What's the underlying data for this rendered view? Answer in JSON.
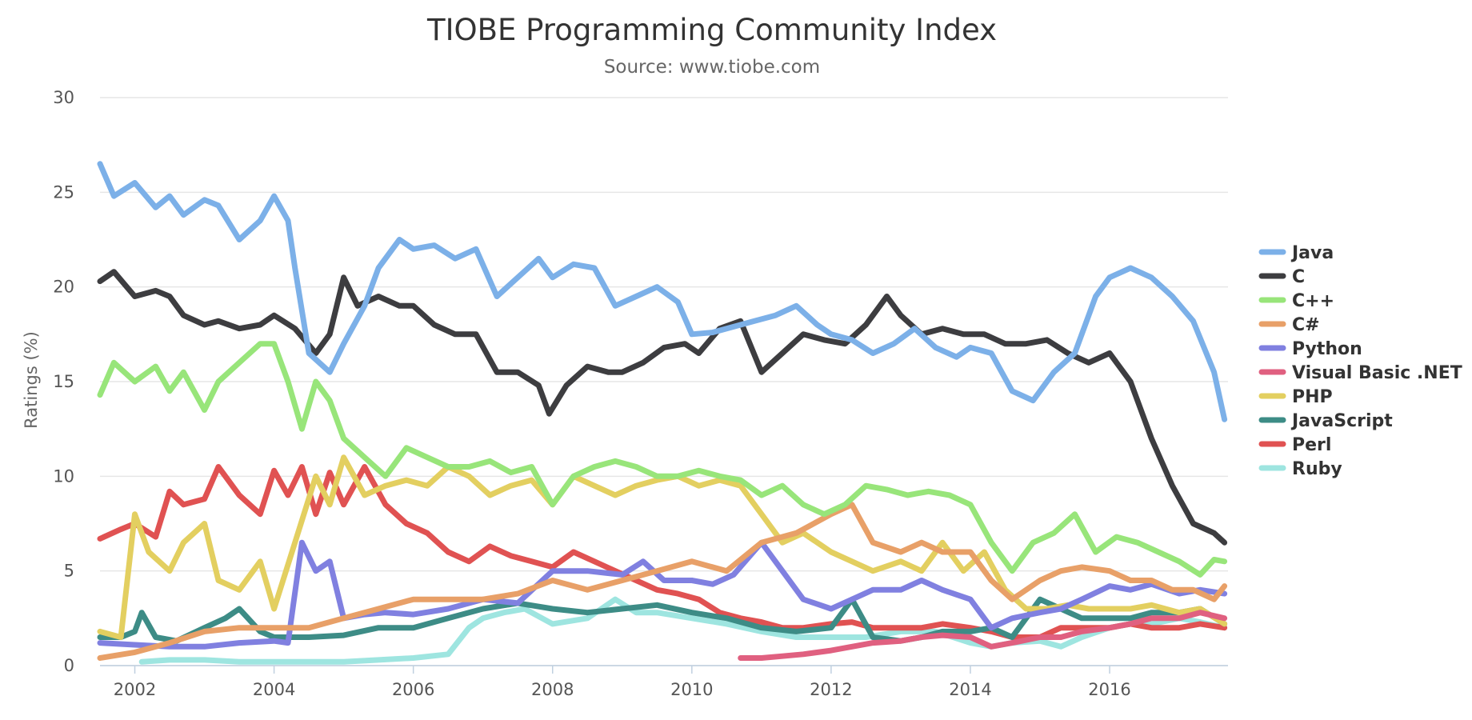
{
  "chart_data": {
    "type": "line",
    "title": "TIOBE Programming Community Index",
    "subtitle": "Source: www.tiobe.com",
    "xlabel": "",
    "ylabel": "Ratings (%)",
    "xlim": [
      2001.5,
      2017.7
    ],
    "ylim": [
      0,
      30
    ],
    "grid": true,
    "legend_position": "right",
    "x_ticks": [
      "2002",
      "2004",
      "2006",
      "2008",
      "2010",
      "2012",
      "2014",
      "2016"
    ],
    "y_ticks": [
      "0",
      "5",
      "10",
      "15",
      "20",
      "25",
      "30"
    ],
    "series": [
      {
        "name": "Java",
        "color": "#7cb0e8",
        "x": [
          2001.5,
          2001.7,
          2002.0,
          2002.3,
          2002.5,
          2002.7,
          2003.0,
          2003.2,
          2003.5,
          2003.8,
          2004.0,
          2004.2,
          2004.3,
          2004.5,
          2004.8,
          2005.0,
          2005.3,
          2005.5,
          2005.8,
          2006.0,
          2006.3,
          2006.6,
          2006.9,
          2007.2,
          2007.5,
          2007.8,
          2008.0,
          2008.3,
          2008.6,
          2008.9,
          2009.2,
          2009.5,
          2009.8,
          2010.0,
          2010.3,
          2010.6,
          2010.9,
          2011.2,
          2011.5,
          2011.8,
          2012.0,
          2012.3,
          2012.6,
          2012.9,
          2013.2,
          2013.5,
          2013.8,
          2014.0,
          2014.3,
          2014.6,
          2014.9,
          2015.2,
          2015.5,
          2015.8,
          2016.0,
          2016.3,
          2016.6,
          2016.9,
          2017.2,
          2017.5,
          2017.65
        ],
        "y": [
          26.5,
          24.8,
          25.5,
          24.2,
          24.8,
          23.8,
          24.6,
          24.3,
          22.5,
          23.5,
          24.8,
          23.5,
          21.0,
          16.5,
          15.5,
          17.0,
          19.0,
          21.0,
          22.5,
          22.0,
          22.2,
          21.5,
          22.0,
          19.5,
          20.5,
          21.5,
          20.5,
          21.2,
          21.0,
          19.0,
          19.5,
          20.0,
          19.2,
          17.5,
          17.6,
          17.9,
          18.2,
          18.5,
          19.0,
          18.0,
          17.5,
          17.2,
          16.5,
          17.0,
          17.8,
          16.8,
          16.3,
          16.8,
          16.5,
          14.5,
          14.0,
          15.5,
          16.5,
          19.5,
          20.5,
          21.0,
          20.5,
          19.5,
          18.2,
          15.5,
          13.0
        ]
      },
      {
        "name": "C",
        "color": "#3d3d40",
        "x": [
          2001.5,
          2001.7,
          2002.0,
          2002.3,
          2002.5,
          2002.7,
          2003.0,
          2003.2,
          2003.5,
          2003.8,
          2004.0,
          2004.3,
          2004.6,
          2004.8,
          2005.0,
          2005.2,
          2005.5,
          2005.8,
          2006.0,
          2006.3,
          2006.6,
          2006.9,
          2007.2,
          2007.5,
          2007.8,
          2007.95,
          2008.2,
          2008.5,
          2008.8,
          2009.0,
          2009.3,
          2009.6,
          2009.9,
          2010.1,
          2010.4,
          2010.7,
          2011.0,
          2011.3,
          2011.6,
          2011.9,
          2012.2,
          2012.5,
          2012.8,
          2013.0,
          2013.3,
          2013.6,
          2013.9,
          2014.2,
          2014.5,
          2014.8,
          2015.1,
          2015.4,
          2015.7,
          2016.0,
          2016.3,
          2016.6,
          2016.9,
          2017.2,
          2017.5,
          2017.65
        ],
        "y": [
          20.3,
          20.8,
          19.5,
          19.8,
          19.5,
          18.5,
          18.0,
          18.2,
          17.8,
          18.0,
          18.5,
          17.8,
          16.5,
          17.5,
          20.5,
          19.0,
          19.5,
          19.0,
          19.0,
          18.0,
          17.5,
          17.5,
          15.5,
          15.5,
          14.8,
          13.3,
          14.8,
          15.8,
          15.5,
          15.5,
          16.0,
          16.8,
          17.0,
          16.5,
          17.8,
          18.2,
          15.5,
          16.5,
          17.5,
          17.2,
          17.0,
          18.0,
          19.5,
          18.5,
          17.5,
          17.8,
          17.5,
          17.5,
          17.0,
          17.0,
          17.2,
          16.5,
          16.0,
          16.5,
          15.0,
          12.0,
          9.5,
          7.5,
          7.0,
          6.5
        ]
      },
      {
        "name": "C++",
        "color": "#98e57a",
        "x": [
          2001.5,
          2001.7,
          2002.0,
          2002.3,
          2002.5,
          2002.7,
          2003.0,
          2003.2,
          2003.5,
          2003.8,
          2004.0,
          2004.2,
          2004.4,
          2004.6,
          2004.8,
          2005.0,
          2005.3,
          2005.6,
          2005.9,
          2006.2,
          2006.5,
          2006.8,
          2007.1,
          2007.4,
          2007.7,
          2008.0,
          2008.3,
          2008.6,
          2008.9,
          2009.2,
          2009.5,
          2009.8,
          2010.1,
          2010.4,
          2010.7,
          2011.0,
          2011.3,
          2011.6,
          2011.9,
          2012.2,
          2012.5,
          2012.8,
          2013.1,
          2013.4,
          2013.7,
          2014.0,
          2014.3,
          2014.6,
          2014.9,
          2015.2,
          2015.5,
          2015.8,
          2016.1,
          2016.4,
          2016.7,
          2017.0,
          2017.3,
          2017.5,
          2017.65
        ],
        "y": [
          14.3,
          16.0,
          15.0,
          15.8,
          14.5,
          15.5,
          13.5,
          15.0,
          16.0,
          17.0,
          17.0,
          15.0,
          12.5,
          15.0,
          14.0,
          12.0,
          11.0,
          10.0,
          11.5,
          11.0,
          10.5,
          10.5,
          10.8,
          10.2,
          10.5,
          8.5,
          10.0,
          10.5,
          10.8,
          10.5,
          10.0,
          10.0,
          10.3,
          10.0,
          9.8,
          9.0,
          9.5,
          8.5,
          8.0,
          8.5,
          9.5,
          9.3,
          9.0,
          9.2,
          9.0,
          8.5,
          6.5,
          5.0,
          6.5,
          7.0,
          8.0,
          6.0,
          6.8,
          6.5,
          6.0,
          5.5,
          4.8,
          5.6,
          5.5
        ]
      },
      {
        "name": "C#",
        "color": "#e8a068",
        "x": [
          2001.5,
          2002.0,
          2002.5,
          2003.0,
          2003.5,
          2004.0,
          2004.5,
          2005.0,
          2005.5,
          2006.0,
          2006.5,
          2007.0,
          2007.5,
          2008.0,
          2008.5,
          2009.0,
          2009.5,
          2010.0,
          2010.5,
          2011.0,
          2011.5,
          2012.0,
          2012.3,
          2012.6,
          2013.0,
          2013.3,
          2013.6,
          2014.0,
          2014.3,
          2014.6,
          2015.0,
          2015.3,
          2015.6,
          2016.0,
          2016.3,
          2016.6,
          2016.9,
          2017.2,
          2017.5,
          2017.65
        ],
        "y": [
          0.4,
          0.7,
          1.2,
          1.8,
          2.0,
          2.0,
          2.0,
          2.5,
          3.0,
          3.5,
          3.5,
          3.5,
          3.8,
          4.5,
          4.0,
          4.5,
          5.0,
          5.5,
          5.0,
          6.5,
          7.0,
          8.0,
          8.5,
          6.5,
          6.0,
          6.5,
          6.0,
          6.0,
          4.5,
          3.5,
          4.5,
          5.0,
          5.2,
          5.0,
          4.5,
          4.5,
          4.0,
          4.0,
          3.5,
          4.2
        ]
      },
      {
        "name": "Python",
        "color": "#8080e0",
        "x": [
          2001.5,
          2002.0,
          2002.5,
          2003.0,
          2003.5,
          2004.0,
          2004.2,
          2004.4,
          2004.6,
          2004.8,
          2005.0,
          2005.3,
          2005.6,
          2006.0,
          2006.5,
          2007.0,
          2007.5,
          2008.0,
          2008.5,
          2009.0,
          2009.3,
          2009.6,
          2010.0,
          2010.3,
          2010.6,
          2011.0,
          2011.3,
          2011.6,
          2012.0,
          2012.3,
          2012.6,
          2013.0,
          2013.3,
          2013.6,
          2014.0,
          2014.3,
          2014.6,
          2015.0,
          2015.3,
          2015.6,
          2016.0,
          2016.3,
          2016.6,
          2017.0,
          2017.3,
          2017.65
        ],
        "y": [
          1.2,
          1.1,
          1.0,
          1.0,
          1.2,
          1.3,
          1.2,
          6.5,
          5.0,
          5.5,
          2.5,
          2.7,
          2.8,
          2.7,
          3.0,
          3.5,
          3.3,
          5.0,
          5.0,
          4.8,
          5.5,
          4.5,
          4.5,
          4.3,
          4.8,
          6.5,
          5.0,
          3.5,
          3.0,
          3.5,
          4.0,
          4.0,
          4.5,
          4.0,
          3.5,
          2.0,
          2.5,
          2.8,
          3.0,
          3.5,
          4.2,
          4.0,
          4.3,
          3.8,
          4.0,
          3.8
        ]
      },
      {
        "name": "Visual Basic .NET",
        "color": "#e06080",
        "x": [
          2010.7,
          2011.0,
          2011.3,
          2011.6,
          2012.0,
          2012.3,
          2012.6,
          2013.0,
          2013.3,
          2013.6,
          2014.0,
          2014.3,
          2014.6,
          2015.0,
          2015.3,
          2015.6,
          2016.0,
          2016.3,
          2016.6,
          2017.0,
          2017.3,
          2017.65
        ],
        "y": [
          0.4,
          0.4,
          0.5,
          0.6,
          0.8,
          1.0,
          1.2,
          1.3,
          1.5,
          1.6,
          1.5,
          1.0,
          1.2,
          1.5,
          1.5,
          1.8,
          2.0,
          2.2,
          2.5,
          2.5,
          2.8,
          2.5
        ]
      },
      {
        "name": "PHP",
        "color": "#e3cf60",
        "x": [
          2001.5,
          2001.8,
          2002.0,
          2002.2,
          2002.5,
          2002.7,
          2003.0,
          2003.2,
          2003.5,
          2003.8,
          2004.0,
          2004.3,
          2004.6,
          2004.8,
          2005.0,
          2005.3,
          2005.6,
          2005.9,
          2006.2,
          2006.5,
          2006.8,
          2007.1,
          2007.4,
          2007.7,
          2008.0,
          2008.3,
          2008.6,
          2008.9,
          2009.2,
          2009.5,
          2009.8,
          2010.1,
          2010.4,
          2010.7,
          2011.0,
          2011.3,
          2011.6,
          2012.0,
          2012.3,
          2012.6,
          2013.0,
          2013.3,
          2013.6,
          2013.9,
          2014.2,
          2014.5,
          2014.8,
          2015.1,
          2015.4,
          2015.7,
          2016.0,
          2016.3,
          2016.6,
          2017.0,
          2017.3,
          2017.65
        ],
        "y": [
          1.8,
          1.5,
          8.0,
          6.0,
          5.0,
          6.5,
          7.5,
          4.5,
          4.0,
          5.5,
          3.0,
          6.5,
          10.0,
          8.5,
          11.0,
          9.0,
          9.5,
          9.8,
          9.5,
          10.5,
          10.0,
          9.0,
          9.5,
          9.8,
          8.5,
          10.0,
          9.5,
          9.0,
          9.5,
          9.8,
          10.0,
          9.5,
          9.8,
          9.5,
          8.0,
          6.5,
          7.0,
          6.0,
          5.5,
          5.0,
          5.5,
          5.0,
          6.5,
          5.0,
          6.0,
          4.0,
          3.0,
          3.0,
          3.2,
          3.0,
          3.0,
          3.0,
          3.2,
          2.8,
          3.0,
          2.2
        ]
      },
      {
        "name": "JavaScript",
        "color": "#3d8c86",
        "x": [
          2001.5,
          2001.8,
          2002.0,
          2002.1,
          2002.3,
          2002.6,
          2003.0,
          2003.3,
          2003.5,
          2003.8,
          2004.0,
          2004.5,
          2005.0,
          2005.5,
          2006.0,
          2006.5,
          2007.0,
          2007.5,
          2008.0,
          2008.5,
          2009.0,
          2009.5,
          2010.0,
          2010.5,
          2011.0,
          2011.5,
          2012.0,
          2012.3,
          2012.6,
          2013.0,
          2013.3,
          2013.6,
          2014.0,
          2014.3,
          2014.6,
          2015.0,
          2015.3,
          2015.6,
          2016.0,
          2016.3,
          2016.6,
          2017.0,
          2017.3,
          2017.65
        ],
        "y": [
          1.5,
          1.5,
          1.8,
          2.8,
          1.5,
          1.3,
          2.0,
          2.5,
          3.0,
          1.8,
          1.5,
          1.5,
          1.6,
          2.0,
          2.0,
          2.5,
          3.0,
          3.3,
          3.0,
          2.8,
          3.0,
          3.2,
          2.8,
          2.5,
          2.0,
          1.8,
          2.0,
          3.5,
          1.5,
          1.3,
          1.5,
          1.8,
          1.8,
          2.0,
          1.5,
          3.5,
          3.0,
          2.5,
          2.5,
          2.5,
          2.8,
          2.8,
          3.0,
          2.2
        ]
      },
      {
        "name": "Perl",
        "color": "#e05252",
        "x": [
          2001.5,
          2001.8,
          2002.0,
          2002.3,
          2002.5,
          2002.7,
          2003.0,
          2003.2,
          2003.5,
          2003.8,
          2004.0,
          2004.2,
          2004.4,
          2004.6,
          2004.8,
          2005.0,
          2005.3,
          2005.6,
          2005.9,
          2006.2,
          2006.5,
          2006.8,
          2007.1,
          2007.4,
          2007.7,
          2008.0,
          2008.3,
          2008.6,
          2008.9,
          2009.2,
          2009.5,
          2009.8,
          2010.1,
          2010.4,
          2010.7,
          2011.0,
          2011.3,
          2011.6,
          2012.0,
          2012.3,
          2012.6,
          2013.0,
          2013.3,
          2013.6,
          2014.0,
          2014.3,
          2014.6,
          2015.0,
          2015.3,
          2015.6,
          2016.0,
          2016.3,
          2016.6,
          2017.0,
          2017.3,
          2017.65
        ],
        "y": [
          6.7,
          7.2,
          7.5,
          6.8,
          9.2,
          8.5,
          8.8,
          10.5,
          9.0,
          8.0,
          10.3,
          9.0,
          10.5,
          8.0,
          10.2,
          8.5,
          10.5,
          8.5,
          7.5,
          7.0,
          6.0,
          5.5,
          6.3,
          5.8,
          5.5,
          5.2,
          6.0,
          5.5,
          5.0,
          4.5,
          4.0,
          3.8,
          3.5,
          2.8,
          2.5,
          2.3,
          2.0,
          2.0,
          2.2,
          2.3,
          2.0,
          2.0,
          2.0,
          2.2,
          2.0,
          1.8,
          1.5,
          1.5,
          2.0,
          2.0,
          2.0,
          2.2,
          2.0,
          2.0,
          2.2,
          2.0
        ]
      },
      {
        "name": "Ruby",
        "color": "#9ee5e0",
        "x": [
          2002.1,
          2002.5,
          2003.0,
          2003.5,
          2004.0,
          2004.5,
          2005.0,
          2005.5,
          2006.0,
          2006.5,
          2006.8,
          2007.0,
          2007.3,
          2007.6,
          2008.0,
          2008.5,
          2008.9,
          2009.2,
          2009.5,
          2010.0,
          2010.5,
          2011.0,
          2011.5,
          2012.0,
          2012.5,
          2013.0,
          2013.5,
          2014.0,
          2014.3,
          2014.6,
          2015.0,
          2015.3,
          2015.6,
          2016.0,
          2016.3,
          2016.6,
          2017.0,
          2017.3,
          2017.65
        ],
        "y": [
          0.2,
          0.3,
          0.3,
          0.2,
          0.2,
          0.2,
          0.2,
          0.3,
          0.4,
          0.6,
          2.0,
          2.5,
          2.8,
          3.0,
          2.2,
          2.5,
          3.5,
          2.8,
          2.8,
          2.5,
          2.2,
          1.8,
          1.5,
          1.5,
          1.5,
          1.8,
          1.8,
          1.2,
          1.0,
          1.2,
          1.3,
          1.0,
          1.5,
          2.0,
          2.2,
          2.2,
          2.5,
          2.3,
          2.0
        ]
      }
    ]
  }
}
